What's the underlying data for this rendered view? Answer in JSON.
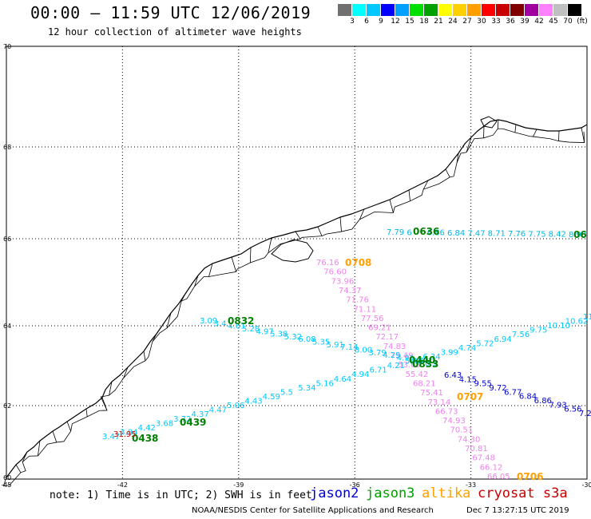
{
  "header": {
    "title": "00:00 – 11:59 UTC 12/06/2019",
    "subtitle": "12 hour collection of altimeter wave heights"
  },
  "colorbar": {
    "colors": [
      "#707070",
      "#00ffff",
      "#00c8ff",
      "#0000ff",
      "#00a0ff",
      "#00e000",
      "#00a000",
      "#ffff00",
      "#ffd000",
      "#ffa000",
      "#ff0000",
      "#c80000",
      "#800000",
      "#a000a0",
      "#ff80ff",
      "#c0c0c0",
      "#000000"
    ],
    "labels": [
      "3",
      "6",
      "9",
      "12",
      "15",
      "18",
      "21",
      "24",
      "27",
      "30",
      "33",
      "36",
      "39",
      "42",
      "45",
      "70",
      "(ft)"
    ]
  },
  "axes": {
    "lat_labels": [
      "70",
      "68",
      "66",
      "64",
      "62",
      "60"
    ],
    "lon_labels": [
      "-45",
      "-42",
      "-39",
      "-36",
      "-33",
      "-30"
    ]
  },
  "tracks": [
    {
      "sat": "jason3",
      "time": "0636",
      "color": "#00a0ff",
      "values": [
        "7.79",
        "6",
        "6.86",
        "6.84",
        "7.47",
        "8.71",
        "7.76",
        "7.75",
        "8.42",
        "8.90"
      ],
      "time_label": "0636",
      "end_label": "06"
    },
    {
      "sat": "altika",
      "time": "0708",
      "color": "#ff80ff",
      "values": [
        "76.16",
        "76.60",
        "73.96",
        "74.37",
        "71.76",
        "71.11",
        "77.56",
        "69.21",
        "72.17",
        "74.83",
        "75.49",
        "53.09",
        "55.42",
        "68.21",
        "75.41",
        "73.14",
        "66.73",
        "74.93",
        "70.51",
        "74.30",
        "70.81",
        "67.48",
        "66.12",
        "66.05"
      ],
      "time_label": "0708"
    },
    {
      "sat": "jason3",
      "time": "0832",
      "color": "#00c8ff",
      "values": [
        "3.09",
        "3.4",
        "4.61",
        "5.28",
        "4.97",
        "5.38",
        "5.32",
        "6.08",
        "5.35",
        "5.91",
        "7.14",
        "8.00",
        "3.79",
        "4.29",
        "4.91",
        "4.30",
        "8.3"
      ],
      "time_label": "0832"
    },
    {
      "sat": "jason2",
      "time": "0439",
      "color": "#00c8ff",
      "values": [
        "3.47",
        "3.84",
        "4.42",
        "3.68",
        "3.72",
        "4.37",
        "4.47",
        "5.06",
        "4.43",
        "4.59",
        "5.5",
        "5.34",
        "5.16",
        "4.64",
        "4.94",
        "6.71",
        "4.21",
        "5.48",
        "6.34",
        "3.99",
        "4.74",
        "5.72",
        "6.94",
        "7.56",
        "9.75",
        "10.10",
        "10.62",
        "11.70"
      ],
      "time_label": "0439"
    },
    {
      "sat": "jason3",
      "time": "0438",
      "color": "#00a000",
      "time_label": "0438"
    },
    {
      "sat": "cryosat",
      "values": [
        "31.95"
      ],
      "color": "#c80000"
    },
    {
      "sat": "jason3",
      "time": "0440",
      "color": "#00a000",
      "time_label": "0440"
    },
    {
      "sat": "jason2",
      "time": "0833",
      "color": "#00a000",
      "time_label": "0833"
    },
    {
      "sat": "altika",
      "time": "0707",
      "color": "#ffa000",
      "time_label": "0707"
    },
    {
      "sat": "altika",
      "time": "0706",
      "color": "#ffa000",
      "time_label": "0706"
    },
    {
      "sat": "jason3",
      "values": [
        "6.43",
        "4.15",
        "9.55",
        "9.72",
        "6.77",
        "6.84",
        "6.86",
        "7.93",
        "6.56",
        "7.2"
      ],
      "color": "#00a0ff"
    }
  ],
  "footer": {
    "note": "note: 1) Time is in UTC; 2) SWH is in feet",
    "legend": [
      {
        "name": "jason2",
        "color": "#0000d0"
      },
      {
        "name": "jason3",
        "color": "#00a000"
      },
      {
        "name": "altika",
        "color": "#ffa000"
      },
      {
        "name": "cryosat s3a",
        "color": "#c80000"
      }
    ],
    "credit": "NOAA/NESDIS Center for Satellite Applications and Research",
    "timestamp": "Dec  7 13:27:15 UTC 2019"
  }
}
